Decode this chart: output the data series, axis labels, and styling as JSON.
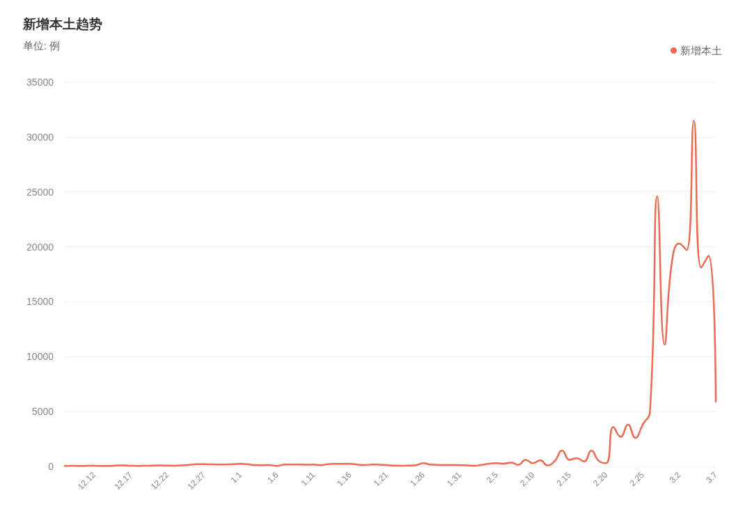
{
  "chart_data": {
    "type": "line",
    "title": "新增本土趋势",
    "subtitle": "单位: 例",
    "categories": [
      null,
      null,
      null,
      null,
      "12.12",
      null,
      null,
      null,
      null,
      "12.17",
      null,
      null,
      null,
      null,
      "12.22",
      null,
      null,
      null,
      null,
      "12.27",
      null,
      null,
      null,
      null,
      "1.1",
      null,
      null,
      null,
      null,
      "1.6",
      null,
      null,
      null,
      null,
      "1.11",
      null,
      null,
      null,
      null,
      "1.16",
      null,
      null,
      null,
      null,
      "1.21",
      null,
      null,
      null,
      null,
      "1.26",
      null,
      null,
      null,
      null,
      "1.31",
      null,
      null,
      null,
      null,
      "2.5",
      null,
      null,
      null,
      null,
      "2.10",
      null,
      null,
      null,
      null,
      "2.15",
      null,
      null,
      null,
      null,
      "2.20",
      null,
      null,
      null,
      null,
      "2.25",
      null,
      null,
      null,
      null,
      "3.2",
      null,
      null,
      null,
      null,
      "3.7"
    ],
    "series": [
      {
        "name": "新增本土",
        "color": "#ec6a52",
        "values": [
          50,
          60,
          50,
          60,
          70,
          40,
          50,
          80,
          100,
          70,
          50,
          60,
          80,
          90,
          80,
          70,
          100,
          150,
          200,
          200,
          190,
          180,
          180,
          200,
          230,
          200,
          120,
          110,
          130,
          40,
          170,
          180,
          180,
          160,
          170,
          120,
          200,
          240,
          240,
          230,
          170,
          120,
          180,
          160,
          120,
          80,
          70,
          80,
          110,
          300,
          170,
          150,
          120,
          130,
          110,
          100,
          60,
          150,
          250,
          300,
          250,
          350,
          150,
          600,
          300,
          550,
          100,
          500,
          1450,
          600,
          750,
          450,
          1450,
          500,
          300,
          3600,
          2700,
          3800,
          2600,
          3800,
          5000,
          24600,
          11100,
          18600,
          20300,
          19700,
          31500,
          18100,
          19200,
          5900
        ]
      }
    ],
    "ylim": [
      0,
      35000
    ],
    "yticks": [
      0,
      5000,
      10000,
      15000,
      20000,
      25000,
      30000,
      35000
    ],
    "grid": "y",
    "legend": "top right",
    "marker": "none",
    "line_style": "solid"
  }
}
